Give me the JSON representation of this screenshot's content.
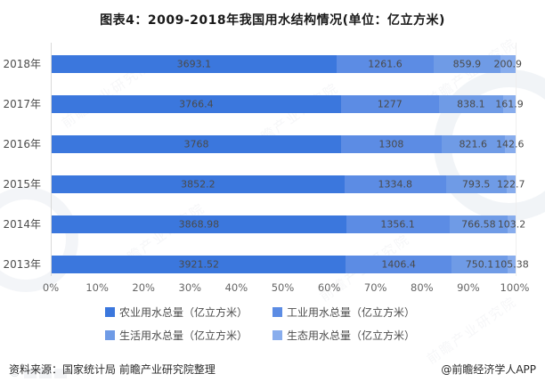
{
  "page": {
    "title": "图表4：2009-2018年我国用水结构情况(单位：亿立方米)"
  },
  "chart_data": {
    "type": "bar",
    "orientation": "horizontal",
    "stacked": true,
    "normalized_to_percent": true,
    "title": "图表4：2009-2018年我国用水结构情况(单位：亿立方米)",
    "unit": "亿立方米",
    "categories": [
      "2018年",
      "2017年",
      "2016年",
      "2015年",
      "2014年",
      "2013年"
    ],
    "series": [
      {
        "name": "农业用水总量（亿立方米）",
        "color": "#3b77dd",
        "values": [
          3693.1,
          3766.4,
          3768,
          3852.2,
          3868.98,
          3921.52
        ]
      },
      {
        "name": "工业用水总量（亿立方米）",
        "color": "#5c8ce4",
        "values": [
          1261.6,
          1277,
          1308,
          1334.8,
          1356.1,
          1406.4
        ]
      },
      {
        "name": "生活用水总量（亿立方米）",
        "color": "#6f9be6",
        "values": [
          859.9,
          838.1,
          821.6,
          793.5,
          766.58,
          750.1
        ]
      },
      {
        "name": "生态用水总量（亿立方米）",
        "color": "#88aded",
        "values": [
          200.9,
          161.9,
          142.6,
          122.7,
          103.2,
          105.38
        ]
      }
    ],
    "x_ticks": [
      "0%",
      "10%",
      "20%",
      "30%",
      "40%",
      "50%",
      "60%",
      "70%",
      "80%",
      "90%",
      "100%"
    ],
    "xlim": [
      0,
      100
    ],
    "grid": false,
    "legend_position": "bottom"
  },
  "footer": {
    "source": "资料来源：国家统计局 前瞻产业研究院整理",
    "credit": "@前瞻经济学人APP"
  },
  "watermark": {
    "text": "前瞻产业研究院",
    "stamp": "©"
  }
}
